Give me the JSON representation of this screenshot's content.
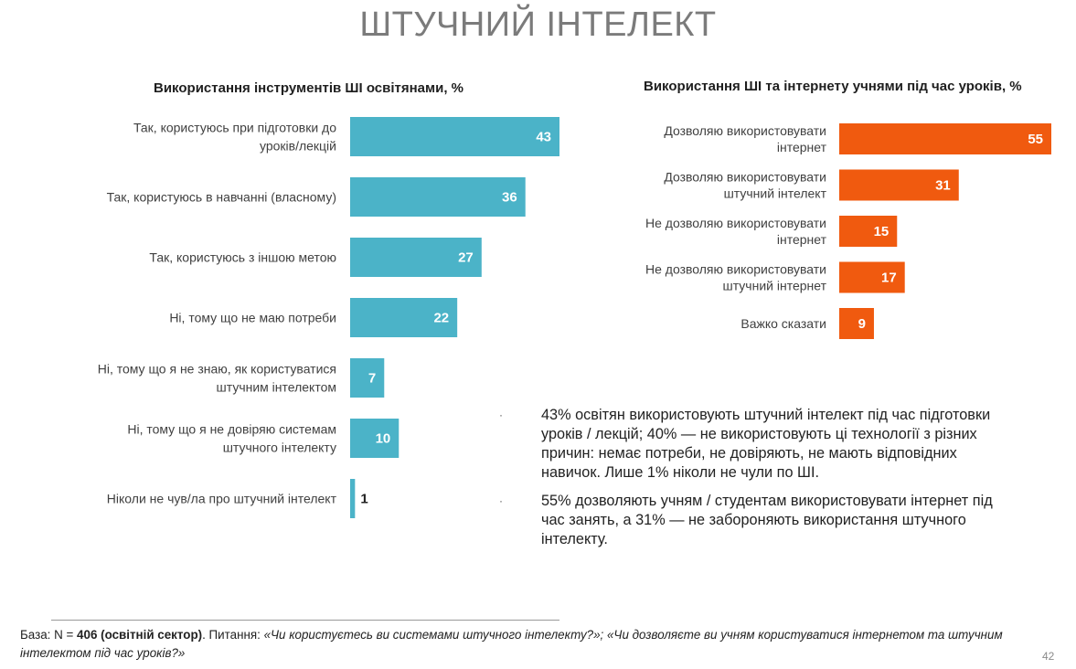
{
  "page": {
    "title": "ШТУЧНИЙ ІНТЕЛЕКТ",
    "page_number": "42"
  },
  "colors": {
    "teal": "#4bb3c8",
    "orange": "#f05a0f"
  },
  "chart_data": [
    {
      "type": "bar",
      "orientation": "horizontal",
      "title": "Використання інструментів ШІ освітянами, %",
      "categories": [
        [
          "Так, користуюсь при підготовки до",
          "уроків/лекцій"
        ],
        [
          "Так, користуюсь в навчанні (власному)"
        ],
        [
          "Так, користуюсь з іншою метою"
        ],
        [
          "Ні, тому що не маю потреби"
        ],
        [
          "Ні, тому що я не знаю, як користуватися",
          "штучним інтелектом"
        ],
        [
          "Ні, тому що я не довіряю системам",
          "штучного інтелекту"
        ],
        [
          "Ніколи не чув/ла про штучний інтелект"
        ]
      ],
      "values": [
        43,
        36,
        27,
        22,
        7,
        10,
        1
      ],
      "color": "#4bb3c8",
      "xlim": [
        0,
        43
      ]
    },
    {
      "type": "bar",
      "orientation": "horizontal",
      "title": "Використання ШІ та інтернету учнями під час уроків, %",
      "categories": [
        [
          "Дозволяю використовувати",
          "інтернет"
        ],
        [
          "Дозволяю використовувати",
          "штучний інтелект"
        ],
        [
          "Не дозволяю використовувати",
          "інтернет"
        ],
        [
          "Не дозволяю використовувати",
          "штучний інтернет"
        ],
        [
          "Важко сказати"
        ]
      ],
      "values": [
        55,
        31,
        15,
        17,
        9
      ],
      "color": "#f05a0f",
      "xlim": [
        0,
        55
      ]
    }
  ],
  "bullets": [
    "43% освітян використовують штучний інтелект під час підготовки уроків / лекцій; 40% — не використовують ці технології з різних причин: немає потреби, не довіряють, не мають відповідних навичок. Лише 1% ніколи не чули по ШІ.",
    "55% дозволяють учням / студентам використовувати інтернет під час занять, а 31% — не забороняють використання штучного інтелекту."
  ],
  "bullet_marker": "·",
  "footer": {
    "base_label": "База: N = ",
    "base_n": "406 (освітній сектор)",
    "question_label": ". Питання: ",
    "questions": "«Чи користуєтесь ви системами штучного інтелекту?»; «Чи дозволяєте ви учням користуватися інтернетом та штучним інтелектом під час уроків?»"
  }
}
